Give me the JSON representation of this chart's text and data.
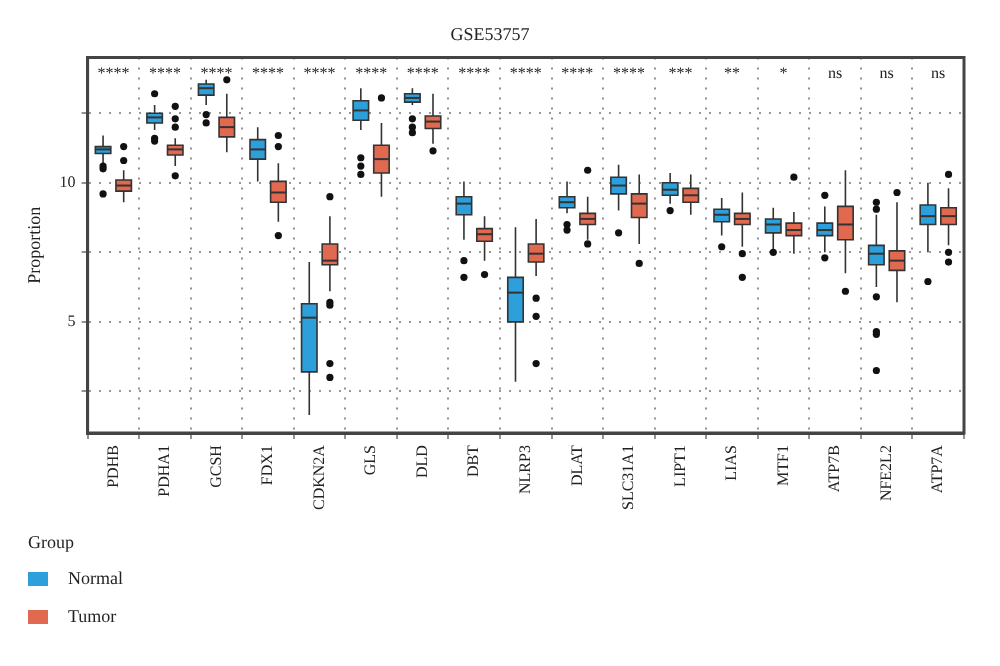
{
  "chart_data": {
    "type": "box",
    "title": "GSE53757",
    "ylabel": "Proportion",
    "legend_title": "Group",
    "legend": "bottom",
    "grid": true,
    "categories": [
      "PDHB",
      "PDHA1",
      "GCSH",
      "FDX1",
      "CDKN2A",
      "GLS",
      "DLD",
      "DBT",
      "NLRP3",
      "DLAT",
      "SLC31A1",
      "LIPT1",
      "LIAS",
      "MTF1",
      "ATP7B",
      "NFE2L2",
      "ATP7A"
    ],
    "ylim": [
      1,
      14.5
    ],
    "yticks": [
      {
        "value": 2.5,
        "label": null
      },
      5,
      {
        "value": 7.5,
        "label": null
      },
      10,
      {
        "value": 12.5,
        "label": null
      }
    ],
    "series": [
      {
        "name": "Normal",
        "color": "#2d9fdb",
        "boxes": [
          {
            "low": 10.7,
            "q1": 11.05,
            "median": 11.2,
            "q3": 11.3,
            "high": 11.7,
            "outliers": [
              10.6,
              10.5,
              9.6
            ]
          },
          {
            "low": 11.9,
            "q1": 12.15,
            "median": 12.35,
            "q3": 12.5,
            "high": 12.8,
            "outliers": [
              13.2,
              11.6,
              11.5
            ]
          },
          {
            "low": 12.8,
            "q1": 13.15,
            "median": 13.4,
            "q3": 13.55,
            "high": 13.7,
            "outliers": [
              12.45,
              12.15
            ]
          },
          {
            "low": 10.05,
            "q1": 10.85,
            "median": 11.2,
            "q3": 11.55,
            "high": 12.0
          },
          {
            "low": 1.65,
            "q1": 3.2,
            "median": 5.15,
            "q3": 5.65,
            "high": 7.15
          },
          {
            "low": 11.9,
            "q1": 12.25,
            "median": 12.6,
            "q3": 12.95,
            "high": 13.4,
            "outliers": [
              10.9,
              10.6,
              10.3
            ]
          },
          {
            "low": 12.8,
            "q1": 12.9,
            "median": 13.05,
            "q3": 13.2,
            "high": 13.4,
            "outliers": [
              12.3,
              12.0,
              11.8
            ]
          },
          {
            "low": 7.95,
            "q1": 8.85,
            "median": 9.25,
            "q3": 9.5,
            "high": 10.05,
            "outliers": [
              7.2,
              6.6
            ]
          },
          {
            "low": 2.85,
            "q1": 5.0,
            "median": 6.05,
            "q3": 6.6,
            "high": 8.4
          },
          {
            "low": 8.9,
            "q1": 9.1,
            "median": 9.3,
            "q3": 9.5,
            "high": 10.05,
            "outliers": [
              8.5,
              8.3
            ]
          },
          {
            "low": 9.0,
            "q1": 9.6,
            "median": 9.9,
            "q3": 10.2,
            "high": 10.65,
            "outliers": [
              8.2
            ]
          },
          {
            "low": 9.25,
            "q1": 9.55,
            "median": 9.75,
            "q3": 10.0,
            "high": 10.35,
            "outliers": [
              9.0
            ]
          },
          {
            "low": 8.1,
            "q1": 8.6,
            "median": 8.85,
            "q3": 9.05,
            "high": 9.45,
            "outliers": [
              7.7
            ]
          },
          {
            "low": 7.55,
            "q1": 8.2,
            "median": 8.5,
            "q3": 8.7,
            "high": 9.1,
            "outliers": [
              7.5
            ]
          },
          {
            "low": 7.5,
            "q1": 8.1,
            "median": 8.3,
            "q3": 8.55,
            "high": 9.15,
            "outliers": [
              9.55,
              7.3
            ]
          },
          {
            "low": 6.25,
            "q1": 7.05,
            "median": 7.45,
            "q3": 7.75,
            "high": 8.85,
            "outliers": [
              9.3,
              9.05,
              5.9,
              4.65,
              4.55,
              3.25
            ]
          },
          {
            "low": 7.5,
            "q1": 8.5,
            "median": 8.8,
            "q3": 9.2,
            "high": 10.0,
            "outliers": [
              6.45
            ]
          }
        ]
      },
      {
        "name": "Tumor",
        "color": "#e0694f",
        "boxes": [
          {
            "low": 9.3,
            "q1": 9.7,
            "median": 9.9,
            "q3": 10.1,
            "high": 10.45,
            "outliers": [
              11.3,
              10.8
            ]
          },
          {
            "low": 10.6,
            "q1": 11.0,
            "median": 11.2,
            "q3": 11.35,
            "high": 11.6,
            "outliers": [
              12.75,
              12.3,
              12.0,
              10.25
            ]
          },
          {
            "low": 11.1,
            "q1": 11.65,
            "median": 12.0,
            "q3": 12.35,
            "high": 13.2,
            "outliers": [
              13.7
            ]
          },
          {
            "low": 8.6,
            "q1": 9.3,
            "median": 9.65,
            "q3": 10.05,
            "high": 10.7,
            "outliers": [
              11.7,
              11.3,
              8.1
            ]
          },
          {
            "low": 6.1,
            "q1": 7.05,
            "median": 7.2,
            "q3": 7.8,
            "high": 8.8,
            "outliers": [
              9.5,
              5.7,
              5.6,
              3.5,
              3.0
            ]
          },
          {
            "low": 9.5,
            "q1": 10.35,
            "median": 10.85,
            "q3": 11.35,
            "high": 12.15,
            "outliers": [
              13.05
            ]
          },
          {
            "low": 11.4,
            "q1": 11.95,
            "median": 12.2,
            "q3": 12.4,
            "high": 13.2,
            "outliers": [
              11.15
            ]
          },
          {
            "low": 7.2,
            "q1": 7.9,
            "median": 8.15,
            "q3": 8.35,
            "high": 8.8,
            "outliers": [
              6.7
            ]
          },
          {
            "low": 6.65,
            "q1": 7.15,
            "median": 7.45,
            "q3": 7.8,
            "high": 8.7,
            "outliers": [
              5.85,
              5.2,
              3.5
            ]
          },
          {
            "low": 7.95,
            "q1": 8.5,
            "median": 8.7,
            "q3": 8.9,
            "high": 9.5,
            "outliers": [
              10.45,
              7.8
            ]
          },
          {
            "low": 7.8,
            "q1": 8.75,
            "median": 9.25,
            "q3": 9.6,
            "high": 10.3,
            "outliers": [
              7.1
            ]
          },
          {
            "low": 8.85,
            "q1": 9.3,
            "median": 9.55,
            "q3": 9.8,
            "high": 10.3
          },
          {
            "low": 7.7,
            "q1": 8.5,
            "median": 8.7,
            "q3": 8.9,
            "high": 9.65,
            "outliers": [
              7.45,
              6.6
            ]
          },
          {
            "low": 7.45,
            "q1": 8.1,
            "median": 8.3,
            "q3": 8.55,
            "high": 8.95,
            "outliers": [
              10.2
            ]
          },
          {
            "low": 6.75,
            "q1": 7.95,
            "median": 8.5,
            "q3": 9.15,
            "high": 10.45,
            "outliers": [
              6.1
            ]
          },
          {
            "low": 5.7,
            "q1": 6.85,
            "median": 7.2,
            "q3": 7.55,
            "high": 9.3,
            "outliers": [
              9.65
            ]
          },
          {
            "low": 7.75,
            "q1": 8.5,
            "median": 8.8,
            "q3": 9.1,
            "high": 9.8,
            "outliers": [
              10.3,
              7.5,
              7.15
            ]
          }
        ]
      }
    ],
    "annotations": [
      "****",
      "****",
      "****",
      "****",
      "****",
      "****",
      "****",
      "****",
      "****",
      "****",
      "****",
      "***",
      "**",
      "*",
      "ns",
      "ns",
      "ns"
    ]
  }
}
